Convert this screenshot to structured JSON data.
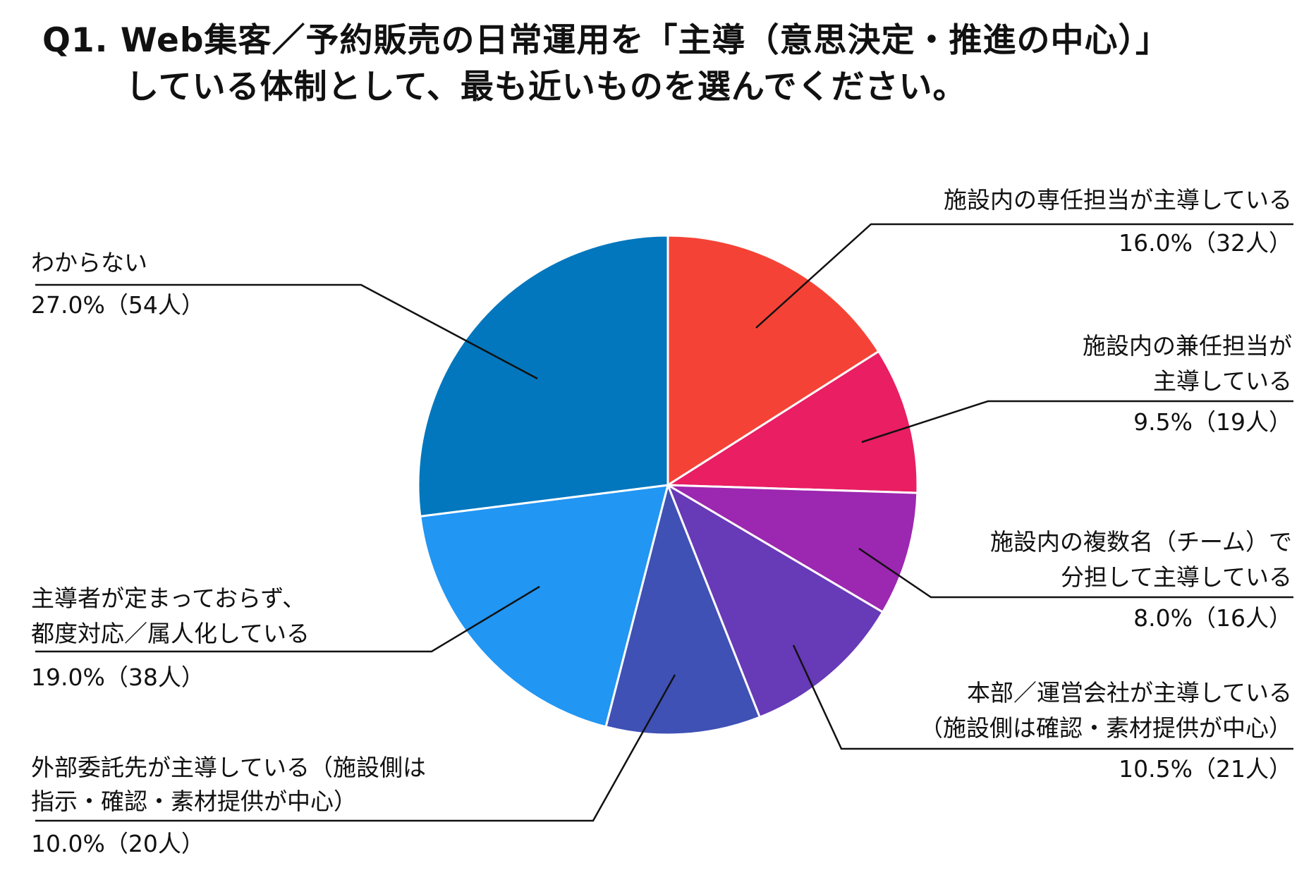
{
  "title": {
    "line1": "Q1. Web集客／予約販売の日常運用を「主導（意思決定・推進の中心）」",
    "line2": "している体制として、最も近いものを選んでください。"
  },
  "chart_data": {
    "type": "pie",
    "title": "Q1. Web集客／予約販売の日常運用を「主導（意思決定・推進の中心）」 している体制として、最も近いものを選んでください。",
    "start": "12 o'clock",
    "direction": "clockwise",
    "slices": [
      {
        "label_lines": [
          "施設内の専任担当が主導している"
        ],
        "value": 16.0,
        "count": 32,
        "value_text": "16.0%（32人）",
        "color": "#F44336"
      },
      {
        "label_lines": [
          "施設内の兼任担当が",
          "主導している"
        ],
        "value": 9.5,
        "count": 19,
        "value_text": "9.5%（19人）",
        "color": "#E91E63"
      },
      {
        "label_lines": [
          "施設内の複数名（チーム）で",
          "分担して主導している"
        ],
        "value": 8.0,
        "count": 16,
        "value_text": "8.0%（16人）",
        "color": "#9C27B0"
      },
      {
        "label_lines": [
          "本部／運営会社が主導している",
          "（施設側は確認・素材提供が中心）"
        ],
        "value": 10.5,
        "count": 21,
        "value_text": "10.5%（21人）",
        "color": "#673AB7"
      },
      {
        "label_lines": [
          "外部委託先が主導している（施設側は",
          "指示・確認・素材提供が中心）"
        ],
        "value": 10.0,
        "count": 20,
        "value_text": "10.0%（20人）",
        "color": "#3F51B5"
      },
      {
        "label_lines": [
          "主導者が定まっておらず、",
          "都度対応／属人化している"
        ],
        "value": 19.0,
        "count": 38,
        "value_text": "19.0%（38人）",
        "color": "#2196F3"
      },
      {
        "label_lines": [
          "わからない"
        ],
        "value": 27.0,
        "count": 54,
        "value_text": "27.0%（54人）",
        "color": "#0277BD"
      }
    ]
  }
}
